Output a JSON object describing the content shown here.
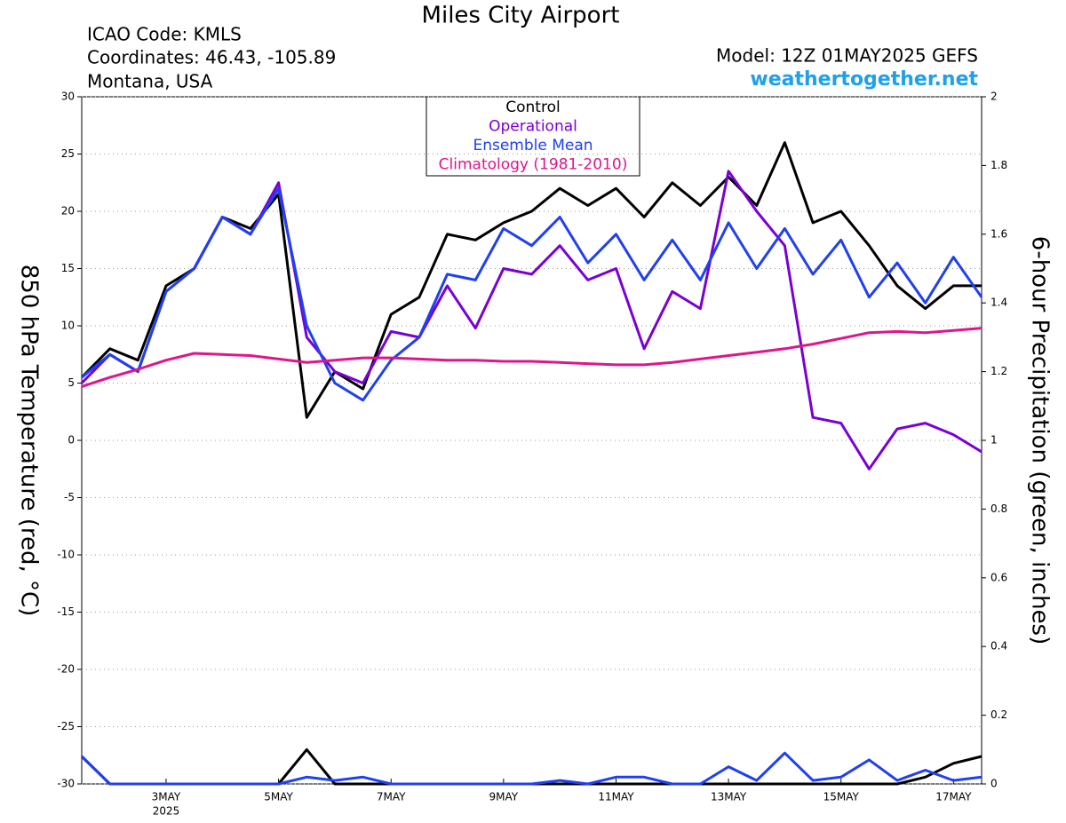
{
  "chart_data": {
    "type": "line",
    "title": "Miles City Airport",
    "info_left": [
      "ICAO Code: KMLS",
      "Coordinates: 46.43, -105.89",
      "Montana, USA"
    ],
    "info_right": "Model: 12Z 01MAY2025 GEFS",
    "source": "weathertogether.net",
    "ylabel": "850 hPa Temperature (red, °C)",
    "y2label": "6-hour Precipitation (green, inches)",
    "x_year": "2025",
    "x": [
      0,
      12,
      24,
      36,
      48,
      60,
      72,
      84,
      96,
      108,
      120,
      132,
      144,
      156,
      168,
      180,
      192,
      204,
      216,
      228,
      240,
      252,
      264,
      276,
      288,
      300,
      312,
      324,
      336,
      348,
      360,
      372,
      384
    ],
    "xlim": [
      0,
      384
    ],
    "xticks": [
      {
        "value": 36,
        "label": "3MAY"
      },
      {
        "value": 84,
        "label": "5MAY"
      },
      {
        "value": 132,
        "label": "7MAY"
      },
      {
        "value": 180,
        "label": "9MAY"
      },
      {
        "value": 228,
        "label": "11MAY"
      },
      {
        "value": 276,
        "label": "13MAY"
      },
      {
        "value": 324,
        "label": "15MAY"
      },
      {
        "value": 372,
        "label": "17MAY"
      }
    ],
    "ylim": [
      -30,
      30
    ],
    "yticks": [
      -30,
      -25,
      -20,
      -15,
      -10,
      -5,
      0,
      5,
      10,
      15,
      20,
      25,
      30
    ],
    "y2lim": [
      0,
      2
    ],
    "y2ticks": [
      0,
      0.2,
      0.4,
      0.6,
      0.8,
      1,
      1.2,
      1.4,
      1.6,
      1.8,
      2
    ],
    "grid": true,
    "legend": "top",
    "series": [
      {
        "name": "Control",
        "color": "#000000",
        "values": [
          5.5,
          8,
          7,
          13.5,
          15,
          19.5,
          18.5,
          21.5,
          2,
          6,
          4.5,
          11,
          12.5,
          18,
          17.5,
          19,
          20,
          22,
          20.5,
          22,
          19.5,
          22.5,
          20.5,
          23,
          20.5,
          26,
          19,
          20,
          17,
          13.5,
          11.5,
          13.5,
          13.5
        ]
      },
      {
        "name": "Operational",
        "color": "#7a00d4",
        "values": [
          5,
          7.5,
          6,
          13,
          15,
          19.5,
          18,
          22.5,
          9,
          6,
          5,
          9.5,
          9,
          13.5,
          9.8,
          15,
          14.5,
          17,
          14,
          15,
          8,
          13,
          11.5,
          23.5,
          20,
          17,
          2,
          1.5,
          -2.5,
          1,
          1.5,
          0.5,
          -1
        ]
      },
      {
        "name": "Ensemble Mean",
        "color": "#2040f0",
        "values": [
          5.5,
          7.5,
          6,
          13,
          15,
          19.5,
          18,
          22,
          10,
          5,
          3.5,
          7,
          9,
          14.5,
          14,
          18.5,
          17,
          19.5,
          15.5,
          18,
          14,
          17.5,
          14,
          19,
          15,
          18.5,
          14.5,
          17.5,
          12.5,
          15.5,
          12,
          16,
          12.5
        ]
      },
      {
        "name": "Climatology (1981-2010)",
        "color": "#e0158a",
        "values": [
          4.7,
          5.5,
          6.2,
          7,
          7.6,
          7.5,
          7.4,
          7.1,
          6.8,
          7,
          7.2,
          7.2,
          7.1,
          7,
          7,
          6.9,
          6.9,
          6.8,
          6.7,
          6.6,
          6.6,
          6.8,
          7.1,
          7.4,
          7.7,
          8,
          8.4,
          8.9,
          9.4,
          9.5,
          9.4,
          9.6,
          9.8
        ]
      }
    ],
    "y2_series": [
      {
        "color": "#000000",
        "axis": "y2",
        "values": [
          0.08,
          0,
          0,
          0,
          0,
          0,
          0,
          0,
          0.1,
          0,
          0,
          0,
          0,
          0,
          0,
          0,
          0,
          0,
          0,
          0,
          0,
          0,
          0,
          0,
          0,
          0,
          0,
          0,
          0,
          0,
          0.02,
          0.06,
          0.08
        ]
      },
      {
        "color": "#2040f0",
        "axis": "y2",
        "values": [
          0.08,
          0,
          0,
          0,
          0,
          0,
          0,
          0,
          0.02,
          0.01,
          0.02,
          0,
          0,
          0,
          0,
          0,
          0,
          0.01,
          0,
          0.02,
          0.02,
          0,
          0,
          0.05,
          0.01,
          0.09,
          0.01,
          0.02,
          0.07,
          0.01,
          0.04,
          0.01,
          0.02
        ]
      }
    ]
  }
}
